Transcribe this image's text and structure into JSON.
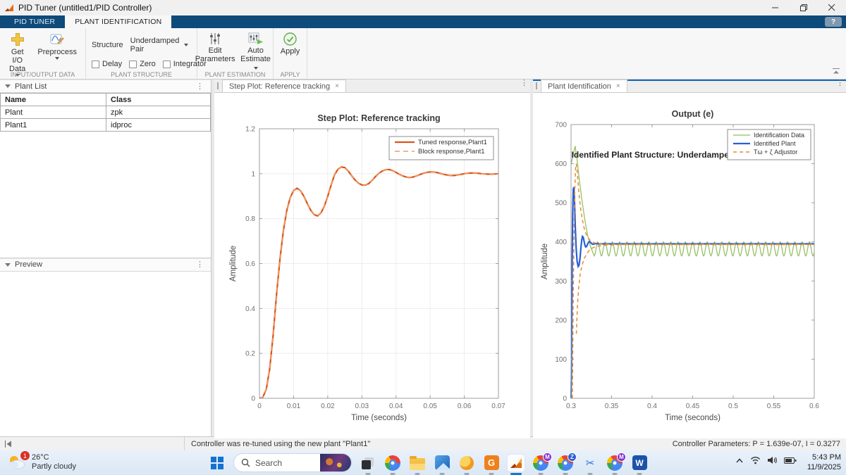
{
  "window": {
    "title": "PID Tuner (untitled1/PID Controller)"
  },
  "ribbon": {
    "tabs": [
      {
        "label": "PID TUNER"
      },
      {
        "label": "PLANT IDENTIFICATION"
      }
    ],
    "help_label": "?",
    "groups": [
      {
        "label": "INPUT/OUTPUT DATA",
        "buttons": [
          {
            "label": "Get I/O Data"
          },
          {
            "label": "Preprocess"
          }
        ]
      },
      {
        "label": "PLANT STRUCTURE",
        "structure_label": "Structure",
        "structure_value": "Underdamped Pair",
        "checkboxes": [
          "Delay",
          "Zero",
          "Integrator"
        ]
      },
      {
        "label": "PLANT ESTIMATION",
        "buttons": [
          {
            "label": "Edit Parameters"
          },
          {
            "label": "Auto Estimate"
          }
        ]
      },
      {
        "label": "APPLY",
        "buttons": [
          {
            "label": "Apply"
          }
        ]
      }
    ]
  },
  "left_panel": {
    "plant_list": {
      "title": "Plant List",
      "columns": [
        "Name",
        "Class"
      ],
      "rows": [
        [
          "Plant",
          "zpk"
        ],
        [
          "Plant1",
          "idproc"
        ]
      ]
    },
    "preview": {
      "title": "Preview"
    }
  },
  "middle_panel": {
    "tab": "Step Plot: Reference tracking"
  },
  "right_panel": {
    "tab": "Plant Identification"
  },
  "status_bar": {
    "message": "Controller was re-tuned using the new plant \"Plant1\"",
    "parameters": "Controller Parameters: P = 1.639e-07, I = 0.3277"
  },
  "taskbar": {
    "weather": {
      "badge": "1",
      "temp": "26°C",
      "condition": "Partly cloudy"
    },
    "search_label": "Search",
    "icons": [
      "start",
      "search",
      "task-view",
      "chrome",
      "file-explorer",
      "photos",
      "phone-link",
      "gom-player",
      "matlab",
      "chrome-gmail",
      "chrome-zoom",
      "snipping-tool",
      "chrome-meet",
      "word"
    ],
    "clock": {
      "time": "5:43 PM",
      "date": "11/9/2025"
    }
  },
  "chart_data": [
    {
      "type": "line",
      "title": "Step Plot: Reference tracking",
      "xlabel": "Time (seconds)",
      "ylabel": "Amplitude",
      "xlim": [
        0,
        0.07
      ],
      "ylim": [
        0,
        1.2
      ],
      "grid": true,
      "xticks": [
        0,
        0.01,
        0.02,
        0.03,
        0.04,
        0.05,
        0.06,
        0.07
      ],
      "xtick_labels": [
        "0",
        "0.01",
        "0.02",
        "0.03",
        "0.04",
        "0.05",
        "0.06",
        "0.07"
      ],
      "yticks": [
        0,
        0.2,
        0.4,
        0.6,
        0.8,
        1,
        1.2
      ],
      "ytick_labels": [
        "0",
        "0.2",
        "0.4",
        "0.6",
        "0.8",
        "1",
        "1.2"
      ],
      "legend_position": "top-right",
      "series": [
        {
          "name": "Tuned response,Plant1",
          "color": "#d95319",
          "width": 2.2,
          "yseq": {
            "t0": 0,
            "dt": 0.001,
            "y": [
              0.0,
              0.005,
              0.04,
              0.13,
              0.28,
              0.46,
              0.62,
              0.745,
              0.835,
              0.893,
              0.925,
              0.935,
              0.925,
              0.9,
              0.868,
              0.838,
              0.818,
              0.812,
              0.825,
              0.855,
              0.9,
              0.95,
              0.995,
              1.02,
              1.03,
              1.027,
              1.012,
              0.991,
              0.972,
              0.958,
              0.95,
              0.949,
              0.956,
              0.97,
              0.988,
              1.002,
              1.012,
              1.018,
              1.019,
              1.014,
              1.006,
              0.997,
              0.99,
              0.985,
              0.983,
              0.985,
              0.99,
              0.996,
              1.002,
              1.006,
              1.008,
              1.008,
              1.005,
              1.001,
              0.997,
              0.994,
              0.992,
              0.992,
              0.994,
              0.997,
              1.0,
              1.002,
              1.003,
              1.003,
              1.002,
              1.0,
              0.999,
              0.998,
              0.998,
              0.999,
              1.0
            ]
          }
        },
        {
          "name": "Block response,Plant1",
          "color": "#f09a63",
          "width": 1.6,
          "dash": "7 5",
          "points_ref": 0
        }
      ]
    },
    {
      "type": "line",
      "title": "Output (e)",
      "xlabel": "Time (seconds)",
      "ylabel": "Amplitude",
      "xlim": [
        0.3,
        0.6
      ],
      "ylim": [
        0,
        700
      ],
      "grid": false,
      "xticks": [
        0.3,
        0.35,
        0.4,
        0.45,
        0.5,
        0.55,
        0.6
      ],
      "xtick_labels": [
        "0.3",
        "0.35",
        "0.4",
        "0.45",
        "0.5",
        "0.55",
        "0.6"
      ],
      "yticks": [
        0,
        100,
        200,
        300,
        400,
        500,
        600,
        700
      ],
      "ytick_labels": [
        "0",
        "100",
        "200",
        "300",
        "400",
        "500",
        "600",
        "700"
      ],
      "legend_position": "top-right",
      "annotation": {
        "text": "Identified Plant Structure: Underdamped Pair",
        "x": 0.3005,
        "y": 615
      },
      "series": [
        {
          "name": "Identification Data",
          "color": "#8fbc5c",
          "width": 1.2,
          "segments": [
            {
              "points": [
                [
                  0.3,
                  598
                ],
                [
                  0.3025,
                  622
                ],
                [
                  0.305,
                  645
                ],
                [
                  0.3075,
                  610
                ],
                [
                  0.31,
                  562
                ],
                [
                  0.3135,
                  506
                ],
                [
                  0.317,
                  456
                ],
                [
                  0.3205,
                  416
                ],
                [
                  0.324,
                  388
                ],
                [
                  0.327,
                  372
                ],
                [
                  0.3285,
                  364
                ]
              ]
            },
            {
              "sine": {
                "from": 0.3285,
                "to": 0.6,
                "center": 382,
                "amplitude": 18,
                "period": 0.009,
                "phase_deg": -90
              }
            }
          ]
        },
        {
          "name": "Identified Plant",
          "color": "#2760d8",
          "width": 2.2,
          "points": [
            [
              0.3,
              0
            ],
            [
              0.3004,
              60
            ],
            [
              0.3008,
              180
            ],
            [
              0.3013,
              330
            ],
            [
              0.302,
              470
            ],
            [
              0.3028,
              535
            ],
            [
              0.3035,
              540
            ],
            [
              0.3043,
              505
            ],
            [
              0.3052,
              440
            ],
            [
              0.3063,
              385
            ],
            [
              0.3075,
              350
            ],
            [
              0.3088,
              337
            ],
            [
              0.3098,
              340
            ],
            [
              0.311,
              358
            ],
            [
              0.3122,
              385
            ],
            [
              0.3132,
              405
            ],
            [
              0.3141,
              414
            ],
            [
              0.315,
              412
            ],
            [
              0.316,
              402
            ],
            [
              0.317,
              392
            ],
            [
              0.318,
              387
            ],
            [
              0.319,
              388
            ],
            [
              0.3202,
              393
            ],
            [
              0.3215,
              399
            ],
            [
              0.3228,
              401
            ],
            [
              0.324,
              399
            ],
            [
              0.3252,
              396
            ],
            [
              0.3265,
              394
            ],
            [
              0.328,
              394
            ],
            [
              0.33,
              396
            ],
            [
              0.333,
              395
            ],
            [
              0.34,
              395
            ],
            [
              0.6,
              395
            ]
          ]
        },
        {
          "name": "Tω + ζ Adjustor",
          "color": "#e98a2b",
          "width": 1.5,
          "dash": "5 4",
          "points": [
            [
              0.3016,
              0
            ],
            [
              0.302,
              90
            ],
            [
              0.3025,
              220
            ],
            [
              0.3031,
              340
            ],
            [
              0.3038,
              450
            ],
            [
              0.3046,
              535
            ],
            [
              0.3055,
              585
            ],
            [
              0.3065,
              600
            ],
            [
              0.3078,
              575
            ],
            [
              0.3095,
              530
            ],
            [
              0.3115,
              490
            ],
            [
              0.3138,
              458
            ],
            [
              0.3162,
              435
            ],
            [
              0.3188,
              419
            ],
            [
              0.3215,
              409
            ],
            [
              0.3245,
              402
            ],
            [
              0.328,
              398
            ],
            [
              0.332,
              396
            ],
            [
              0.34,
              394
            ],
            [
              0.36,
              394
            ],
            [
              0.6,
              394
            ]
          ]
        },
        {
          "name": "adjustor-lower-envelope",
          "legend": false,
          "color": "#e98a2b",
          "width": 1.5,
          "dash": "5 4",
          "points": [
            [
              0.3065,
              165
            ],
            [
              0.3078,
              235
            ],
            [
              0.3095,
              285
            ],
            [
              0.3115,
              320
            ],
            [
              0.3138,
              342
            ],
            [
              0.3162,
              357
            ],
            [
              0.3188,
              368
            ],
            [
              0.3215,
              376
            ],
            [
              0.3245,
              382
            ],
            [
              0.328,
              386
            ],
            [
              0.332,
              389
            ],
            [
              0.34,
              391
            ],
            [
              0.36,
              393
            ],
            [
              0.6,
              393
            ]
          ]
        }
      ]
    }
  ]
}
